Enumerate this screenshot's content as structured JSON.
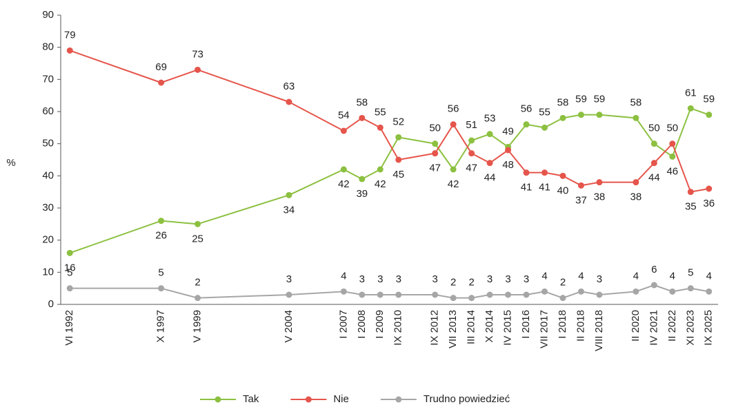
{
  "chart_data": {
    "type": "line",
    "ylabel": "%",
    "categories": [
      "VI 1992",
      null,
      null,
      null,
      null,
      "X 1997",
      null,
      "V 1999",
      null,
      null,
      null,
      null,
      "V 2004",
      null,
      null,
      "I 2007",
      "I 2008",
      "I 2009",
      "IX 2010",
      null,
      "IX  2012",
      "VII 2013",
      "III 2014",
      "X 2014",
      "IV 2015",
      "I 2016",
      "VII 2017",
      "I 2018",
      "II 2018",
      "VIII 2018",
      null,
      "II 2020",
      "IV 2021",
      "II 2022",
      "XI 2023",
      "IX 2025"
    ],
    "series": [
      {
        "name": "Tak",
        "color": "#8cc040",
        "values": [
          16,
          null,
          null,
          null,
          null,
          26,
          null,
          25,
          null,
          null,
          null,
          null,
          34,
          null,
          null,
          42,
          39,
          42,
          52,
          null,
          50,
          42,
          51,
          53,
          49,
          56,
          55,
          58,
          59,
          59,
          null,
          58,
          50,
          46,
          61,
          59
        ]
      },
      {
        "name": "Nie",
        "color": "#e5554b",
        "values": [
          79,
          null,
          null,
          null,
          null,
          69,
          null,
          73,
          null,
          null,
          null,
          null,
          63,
          null,
          null,
          54,
          58,
          55,
          45,
          null,
          47,
          56,
          47,
          44,
          48,
          41,
          41,
          40,
          37,
          38,
          null,
          38,
          44,
          50,
          35,
          36
        ]
      },
      {
        "name": "Trudno powiedzieć",
        "color": "#a6a6a6",
        "values": [
          5,
          null,
          null,
          null,
          null,
          5,
          null,
          2,
          null,
          null,
          null,
          null,
          3,
          null,
          null,
          4,
          3,
          3,
          3,
          null,
          3,
          2,
          2,
          3,
          3,
          3,
          4,
          2,
          4,
          3,
          null,
          4,
          6,
          4,
          5,
          4
        ]
      }
    ],
    "ylim": [
      0,
      90
    ],
    "yticks": [
      0,
      10,
      20,
      30,
      40,
      50,
      60,
      70,
      80,
      90
    ],
    "grid": false,
    "legend": "bottom"
  }
}
